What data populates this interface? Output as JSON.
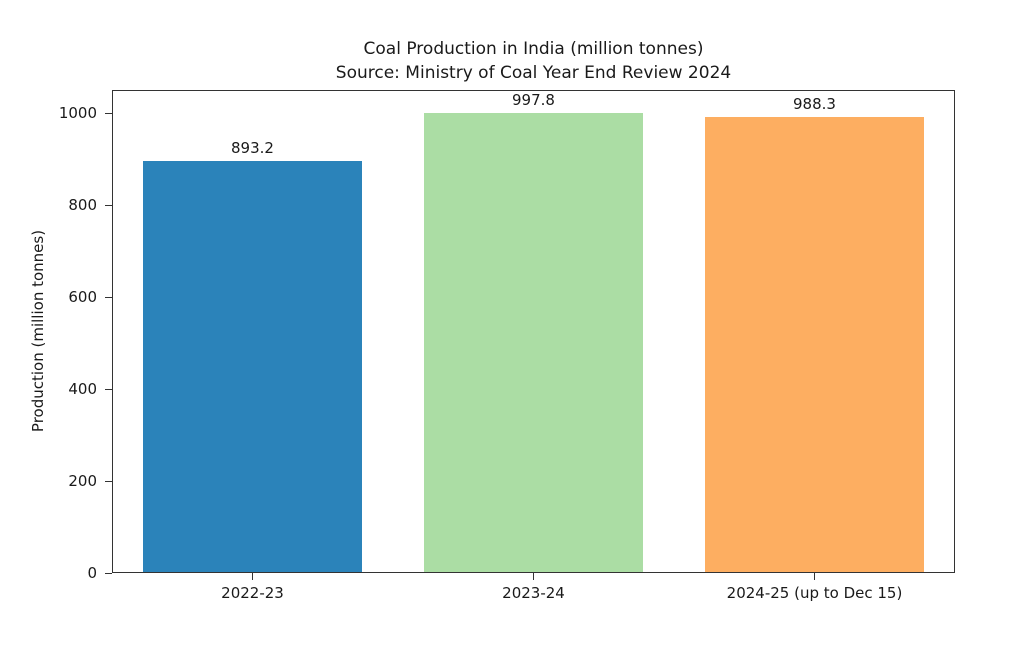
{
  "chart_data": {
    "type": "bar",
    "title": "Coal Production in India (million tonnes)",
    "subtitle": "Source: Ministry of Coal Year End Review 2024",
    "xlabel": "",
    "ylabel": "Production (million tonnes)",
    "categories": [
      "2022-23",
      "2023-24",
      "2024-25 (up to Dec 15)"
    ],
    "values": [
      893.2,
      997.8,
      988.3
    ],
    "value_labels": [
      "893.2",
      "997.8",
      "988.3"
    ],
    "bar_colors": [
      "#2b83ba",
      "#abdda4",
      "#fdae61"
    ],
    "ylim": [
      0,
      1050
    ],
    "yticks": [
      0,
      200,
      400,
      600,
      800,
      1000
    ],
    "grid": false,
    "legend_position": "none",
    "bar_width_fraction": 0.78,
    "text_color": "#1a1a1a",
    "spine_color": "#333333",
    "background_color": "#ffffff"
  }
}
